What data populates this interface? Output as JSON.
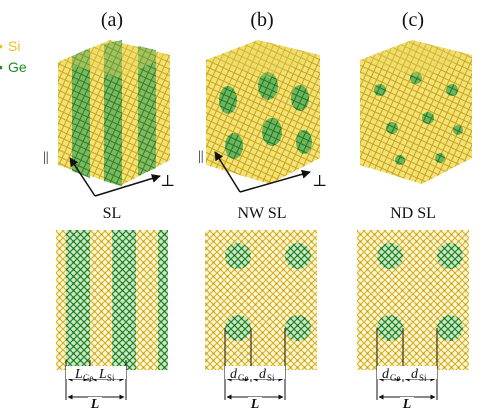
{
  "legend": {
    "si": {
      "label": "Si",
      "color": "#e6c41f"
    },
    "ge": {
      "label": "Ge",
      "color": "#1e8c1e"
    }
  },
  "panels": [
    {
      "id": "a",
      "letter": "(a)",
      "name": "SL"
    },
    {
      "id": "b",
      "letter": "(b)",
      "name": "NW SL"
    },
    {
      "id": "c",
      "letter": "(c)",
      "name": "ND SL"
    }
  ],
  "axes": {
    "parallel": "||",
    "perp": "⊥"
  },
  "dims": {
    "a": {
      "left_main": "L",
      "left_sub": "Ge",
      "right_main": "L",
      "right_sub": "Si",
      "total": "L"
    },
    "b": {
      "left_main": "d",
      "left_sub": "Ge",
      "right_main": "d",
      "right_sub": "Si",
      "total": "L"
    },
    "c": {
      "left_main": "d",
      "left_sub": "Ge",
      "right_main": "d",
      "right_sub": "Si",
      "total": "L"
    }
  }
}
